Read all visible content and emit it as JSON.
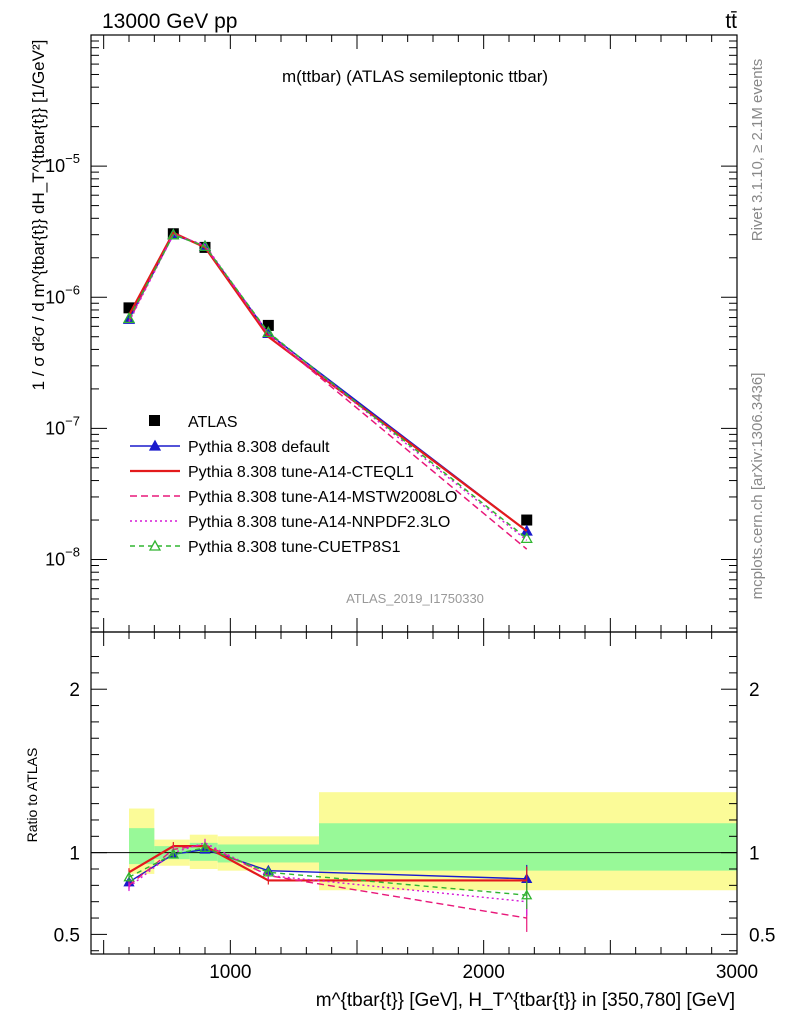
{
  "header": {
    "energy_label": "13000 GeV pp",
    "process_label": "tt̄"
  },
  "side_labels": {
    "rivet": "Rivet 3.1.10, ≥ 2.1M events",
    "mcplots": "mcplots.cern.ch [arXiv:1306.3436]"
  },
  "chart_data": [
    {
      "type": "line",
      "panel": "main",
      "title": "m(ttbar) (ATLAS semileptonic ttbar)",
      "ylabel": "1 / σ d²σ / d m^{tbar{t}} dH_T^{tbar{t}} [1/GeV²]",
      "yscale": "log",
      "xlim": [
        450,
        3000
      ],
      "ylim": [
        2.8e-09,
        0.0001
      ],
      "yticks": [
        "10^-8",
        "10^-7",
        "10^-6",
        "10^-5"
      ],
      "watermark": "ATLAS_2019_I1750330",
      "legend_position": "bottom-left",
      "x": [
        600,
        775,
        900,
        1150,
        2170
      ],
      "series": [
        {
          "name": "ATLAS",
          "color": "#000000",
          "marker": "square",
          "values": [
            8.3e-07,
            3.05e-06,
            2.4e-06,
            6.1e-07,
            2e-08
          ]
        },
        {
          "name": "Pythia 8.308 default",
          "color": "#1a1acc",
          "marker": "triangle",
          "dash": "none",
          "values": [
            6.8e-07,
            3e-06,
            2.45e-06,
            5.3e-07,
            1.65e-08
          ]
        },
        {
          "name": "Pythia 8.308 tune-A14-CTEQL1",
          "color": "#e31a1c",
          "marker": "none",
          "dash": "none",
          "values": [
            7.3e-07,
            3.1e-06,
            2.4e-06,
            5e-07,
            1.65e-08
          ]
        },
        {
          "name": "Pythia 8.308 tune-A14-MSTW2008LO",
          "color": "#e8187a",
          "marker": "none",
          "dash": "7,4",
          "values": [
            6.6e-07,
            3.05e-06,
            2.45e-06,
            5.2e-07,
            1.2e-08
          ]
        },
        {
          "name": "Pythia 8.308 tune-A14-NNPDF2.3LO",
          "color": "#d61ad6",
          "marker": "none",
          "dash": "2,3",
          "values": [
            6.5e-07,
            3e-06,
            2.5e-06,
            5.3e-07,
            1.4e-08
          ]
        },
        {
          "name": "Pythia 8.308 tune-CUETP8S1",
          "color": "#31b531",
          "marker": "open-triangle",
          "dash": "5,4",
          "values": [
            6.9e-07,
            3e-06,
            2.45e-06,
            5.4e-07,
            1.45e-08
          ]
        }
      ]
    },
    {
      "type": "line",
      "panel": "ratio",
      "ylabel": "Ratio to ATLAS",
      "xlabel": "m^{tbar{t}} [GeV], H_T^{tbar{t}} in [350,780] [GeV]",
      "xlim": [
        450,
        3000
      ],
      "ylim": [
        0.38,
        2.35
      ],
      "xticks": [
        "1000",
        "2000",
        "3000"
      ],
      "yticks": [
        "0.5",
        "1",
        "2"
      ],
      "bands": [
        {
          "x0": 600,
          "x1": 700,
          "yellow": [
            0.87,
            1.27
          ],
          "green": [
            0.93,
            1.15
          ]
        },
        {
          "x0": 700,
          "x1": 840,
          "yellow": [
            0.92,
            1.08
          ],
          "green": [
            0.96,
            1.04
          ]
        },
        {
          "x0": 840,
          "x1": 950,
          "yellow": [
            0.9,
            1.11
          ],
          "green": [
            0.95,
            1.06
          ]
        },
        {
          "x0": 950,
          "x1": 1350,
          "yellow": [
            0.89,
            1.1
          ],
          "green": [
            0.94,
            1.05
          ]
        },
        {
          "x0": 1350,
          "x1": 3000,
          "yellow": [
            0.77,
            1.37
          ],
          "green": [
            0.89,
            1.18
          ]
        }
      ],
      "x": [
        600,
        775,
        900,
        1150,
        2170
      ],
      "series": [
        {
          "name": "Pythia 8.308 default",
          "values": [
            0.82,
            0.99,
            1.02,
            0.89,
            0.84
          ]
        },
        {
          "name": "Pythia 8.308 tune-A14-CTEQL1",
          "values": [
            0.88,
            1.04,
            1.04,
            0.83,
            0.83
          ]
        },
        {
          "name": "Pythia 8.308 tune-A14-MSTW2008LO",
          "values": [
            0.8,
            1.02,
            1.05,
            0.86,
            0.6
          ]
        },
        {
          "name": "Pythia 8.308 tune-A14-NNPDF2.3LO",
          "values": [
            0.79,
            1.0,
            1.06,
            0.86,
            0.7
          ]
        },
        {
          "name": "Pythia 8.308 tune-CUETP8S1",
          "values": [
            0.85,
            0.99,
            1.03,
            0.88,
            0.74
          ]
        }
      ]
    }
  ]
}
